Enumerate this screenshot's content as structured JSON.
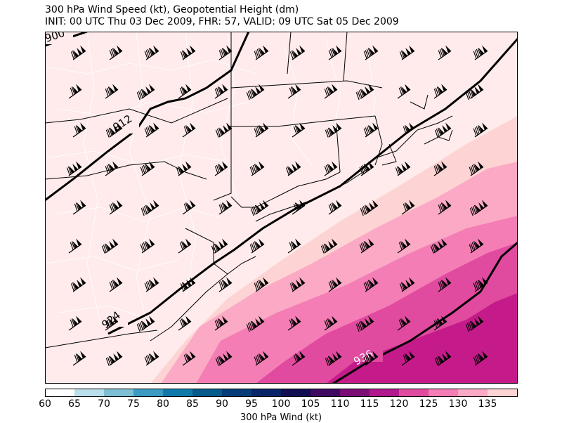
{
  "title_line1": "300 hPa Wind Speed (kt), Geopotential Height (dm)",
  "title_line2": "INIT: 00 UTC Thu 03 Dec 2009, FHR: 57, VALID: 09 UTC Sat 05 Dec 2009",
  "colorbar": {
    "title": "300 hPa Wind (kt)",
    "ticks": [
      "60",
      "65",
      "70",
      "75",
      "80",
      "85",
      "90",
      "95",
      "100",
      "105",
      "110",
      "115",
      "120",
      "125",
      "130",
      "135"
    ],
    "colors": [
      "#ffffff",
      "#b9dfeb",
      "#7ebfd6",
      "#3b9bc2",
      "#0f7aaa",
      "#075a8a",
      "#063d78",
      "#0a2468",
      "#120e52",
      "#3f0a62",
      "#7a0e74",
      "#b1188b",
      "#e04a9f",
      "#f37db4",
      "#fba9c4",
      "#fdd3d3"
    ]
  },
  "contour_labels": [
    "900",
    "912",
    "924",
    "936"
  ],
  "shading_colors": {
    "lt_110": "#ffebeb",
    "110_115": "#fdd3d3",
    "115_120": "#fba9c4",
    "120_125": "#f37db4",
    "125_130": "#e04a9f",
    "gt_130": "#c51b8a"
  },
  "basemap": {
    "land_color": "#ffebeb",
    "state_border_color": "#000000",
    "county_border_color": "#ffffff"
  },
  "wind_barb_icon": "wind-barb-icon"
}
